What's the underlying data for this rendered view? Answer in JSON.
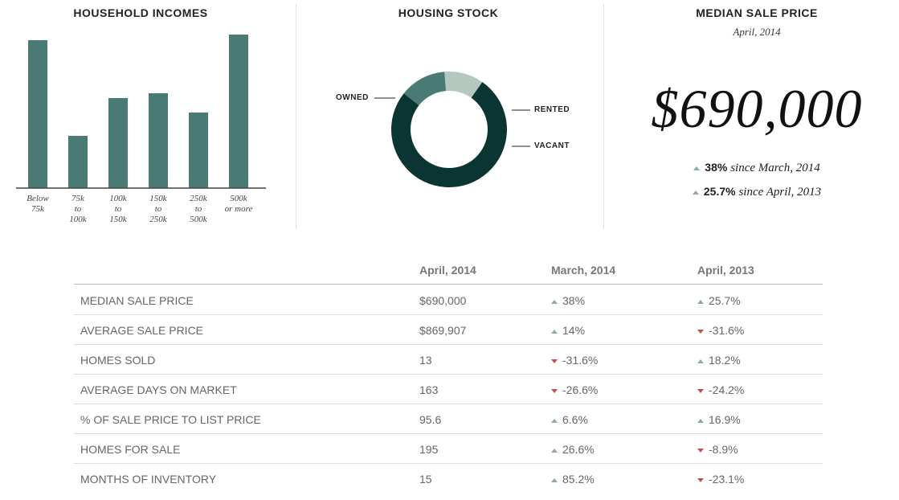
{
  "chart_data": [
    {
      "type": "bar",
      "title": "HOUSEHOLD INCOMES",
      "categories": [
        "Below\n75k",
        "75k\nto\n100k",
        "100k\nto\n150k",
        "150k\nto\n250k",
        "250k\nto\n500k",
        "500k\nor more"
      ],
      "values": [
        184,
        65,
        112,
        118,
        94,
        191
      ],
      "color": "#4a7a74",
      "ylim": [
        0,
        200
      ]
    },
    {
      "type": "pie",
      "title": "HOUSING STOCK",
      "donut": true,
      "categories": [
        "OWNED",
        "RENTED",
        "VACANT"
      ],
      "values": [
        76,
        13,
        11
      ],
      "colors": [
        "#0b3532",
        "#4a7a74",
        "#b4c8c0"
      ]
    }
  ],
  "price": {
    "title": "MEDIAN SALE PRICE",
    "subtitle": "April, 2014",
    "value": "$690,000",
    "changes": [
      {
        "value": "38%",
        "text": "since March, 2014"
      },
      {
        "value": "25.7%",
        "text": "since April, 2013"
      }
    ]
  },
  "table": {
    "columns": [
      "April, 2014",
      "March, 2014",
      "April, 2013"
    ],
    "rows": [
      [
        "MEDIAN SALE PRICE",
        "$690,000",
        "38%",
        "25.7%"
      ],
      [
        "AVERAGE SALE PRICE",
        "$869,907",
        "14%",
        "-31.6%"
      ],
      [
        "HOMES SOLD",
        "13",
        "-31.6%",
        "18.2%"
      ],
      [
        "AVERAGE DAYS ON MARKET",
        "163",
        "-26.6%",
        "-24.2%"
      ],
      [
        "% OF SALE PRICE TO LIST PRICE",
        "95.6",
        "6.6%",
        "16.9%"
      ],
      [
        "HOMES FOR SALE",
        "195",
        "26.6%",
        "-8.9%"
      ],
      [
        "MONTHS OF INVENTORY",
        "15",
        "85.2%",
        "-23.1%"
      ]
    ]
  }
}
